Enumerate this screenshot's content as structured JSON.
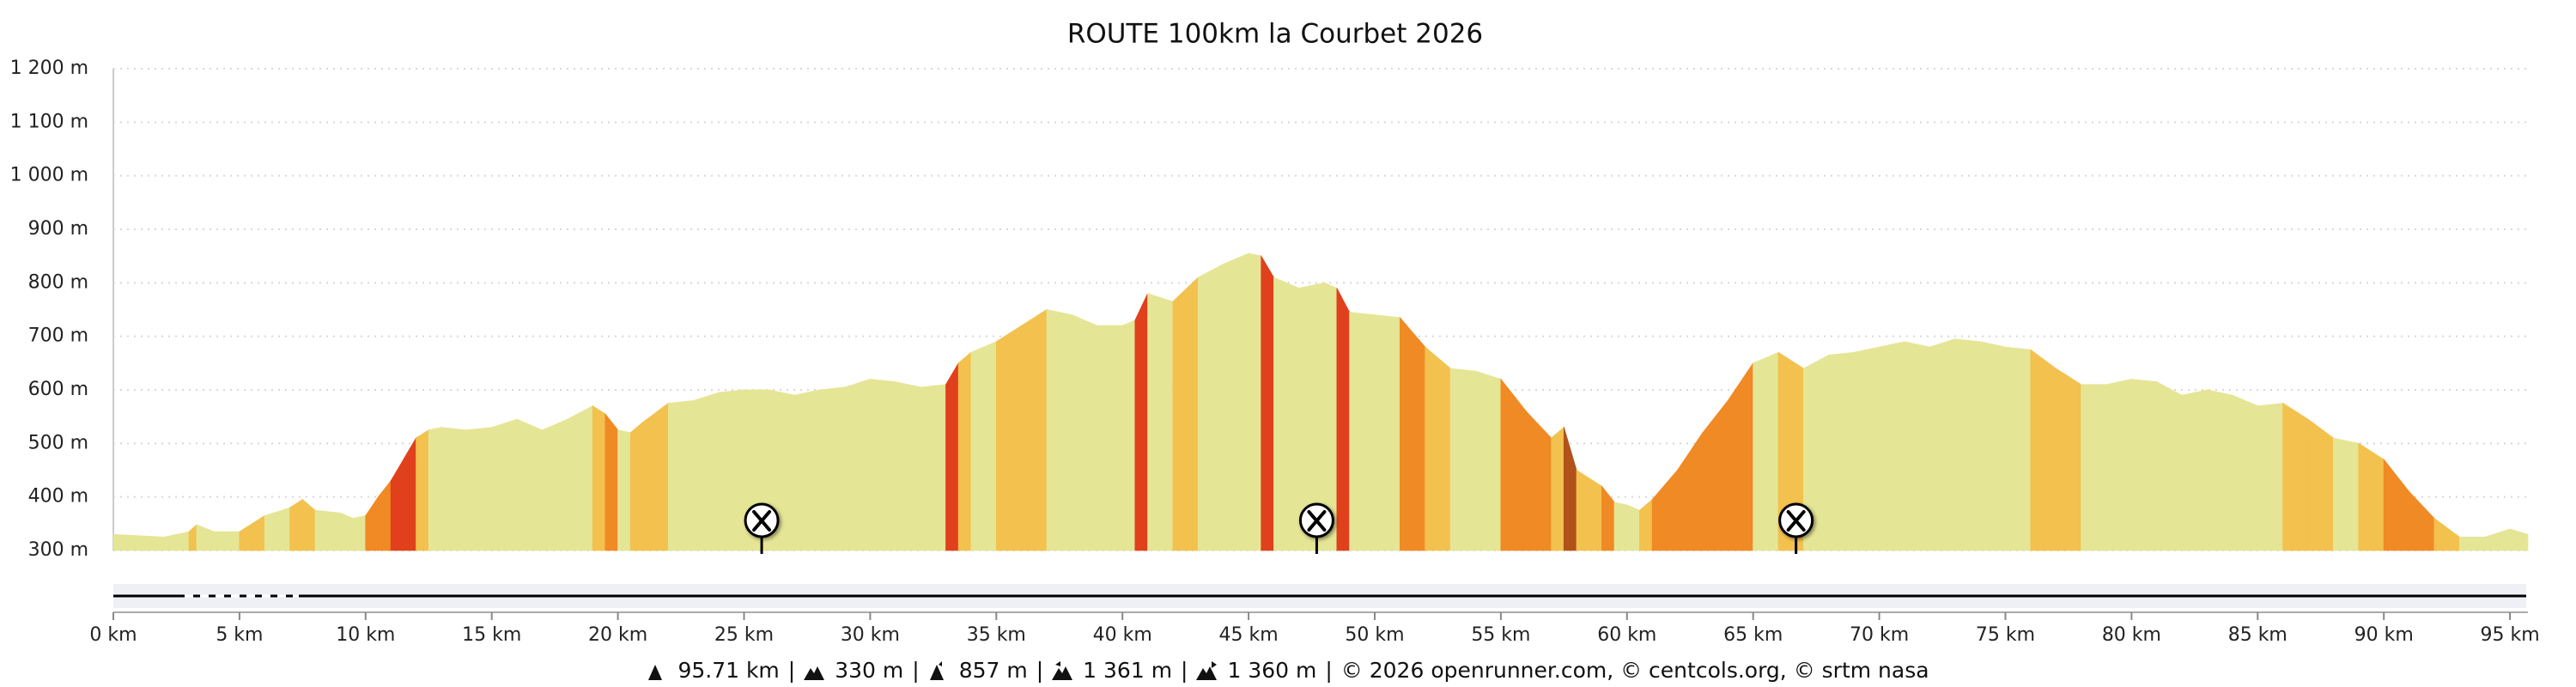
{
  "chart_data": {
    "type": "area",
    "title": "ROUTE 100km la Courbet 2026",
    "x": [
      0,
      2,
      3,
      3.3,
      4,
      5,
      6,
      7,
      7.5,
      8,
      9,
      9.5,
      10,
      10.5,
      11,
      11.5,
      12,
      12.5,
      13,
      14,
      15,
      16,
      17,
      18,
      19,
      19.5,
      20,
      20.5,
      21,
      22,
      23,
      24,
      25,
      26,
      27,
      28,
      29,
      30,
      31,
      32,
      33,
      33.5,
      34,
      35,
      36,
      37,
      38,
      39,
      40,
      40.5,
      41,
      42,
      43,
      44,
      45,
      45.5,
      46,
      47,
      48,
      48.5,
      49,
      50,
      51,
      52,
      53,
      54,
      55,
      56,
      57,
      57.5,
      58,
      59,
      59.5,
      60,
      60.5,
      61,
      62,
      63,
      64,
      65,
      66,
      67,
      68,
      69,
      70,
      71,
      72,
      73,
      74,
      75,
      76,
      77,
      78,
      79,
      80,
      81,
      82,
      83,
      84,
      85,
      86,
      87,
      88,
      89,
      90,
      91,
      92,
      93,
      94,
      95,
      95.71
    ],
    "values": [
      330,
      325,
      335,
      348,
      335,
      335,
      365,
      380,
      395,
      375,
      370,
      360,
      365,
      400,
      430,
      470,
      510,
      525,
      530,
      525,
      530,
      545,
      525,
      545,
      570,
      555,
      525,
      520,
      540,
      575,
      580,
      595,
      600,
      600,
      590,
      600,
      605,
      620,
      615,
      605,
      610,
      650,
      670,
      690,
      720,
      750,
      740,
      720,
      720,
      730,
      780,
      765,
      810,
      835,
      855,
      850,
      810,
      790,
      800,
      790,
      745,
      740,
      735,
      680,
      640,
      635,
      620,
      560,
      510,
      530,
      450,
      420,
      390,
      385,
      375,
      395,
      450,
      520,
      580,
      650,
      670,
      640,
      665,
      670,
      680,
      690,
      680,
      695,
      690,
      680,
      675,
      640,
      610,
      610,
      620,
      615,
      590,
      600,
      590,
      570,
      575,
      545,
      510,
      500,
      470,
      410,
      360,
      325,
      325,
      340,
      330
    ],
    "xlim": [
      0,
      95.71
    ],
    "ylim": [
      300,
      1200
    ],
    "xticks": [
      {
        "value": 0,
        "label": "0 km"
      },
      {
        "value": 5,
        "label": "5 km"
      },
      {
        "value": 10,
        "label": "10 km"
      },
      {
        "value": 15,
        "label": "15 km"
      },
      {
        "value": 20,
        "label": "20 km"
      },
      {
        "value": 25,
        "label": "25 km"
      },
      {
        "value": 30,
        "label": "30 km"
      },
      {
        "value": 35,
        "label": "35 km"
      },
      {
        "value": 40,
        "label": "40 km"
      },
      {
        "value": 45,
        "label": "45 km"
      },
      {
        "value": 50,
        "label": "50 km"
      },
      {
        "value": 55,
        "label": "55 km"
      },
      {
        "value": 60,
        "label": "60 km"
      },
      {
        "value": 65,
        "label": "65 km"
      },
      {
        "value": 70,
        "label": "70 km"
      },
      {
        "value": 75,
        "label": "75 km"
      },
      {
        "value": 80,
        "label": "80 km"
      },
      {
        "value": 85,
        "label": "85 km"
      },
      {
        "value": 90,
        "label": "90 km"
      },
      {
        "value": 95,
        "label": "95 km"
      }
    ],
    "yticks": [
      {
        "value": 300,
        "label": "300 m"
      },
      {
        "value": 400,
        "label": "400 m"
      },
      {
        "value": 500,
        "label": "500 m"
      },
      {
        "value": 600,
        "label": "600 m"
      },
      {
        "value": 700,
        "label": "700 m"
      },
      {
        "value": 800,
        "label": "800 m"
      },
      {
        "value": 900,
        "label": "900 m"
      },
      {
        "value": 1000,
        "label": "1 000 m"
      },
      {
        "value": 1100,
        "label": "1 100 m"
      },
      {
        "value": 1200,
        "label": "1 200 m"
      }
    ],
    "grid": true,
    "markers": [
      25.7,
      47.7,
      66.7
    ]
  },
  "footer": {
    "items": [
      "95.71 km",
      "330 m",
      "857 m",
      "1 361 m",
      "1 360 m"
    ],
    "separator": "|",
    "credit": "© 2026 openrunner.com, © centcols.org, © srtm nasa"
  }
}
